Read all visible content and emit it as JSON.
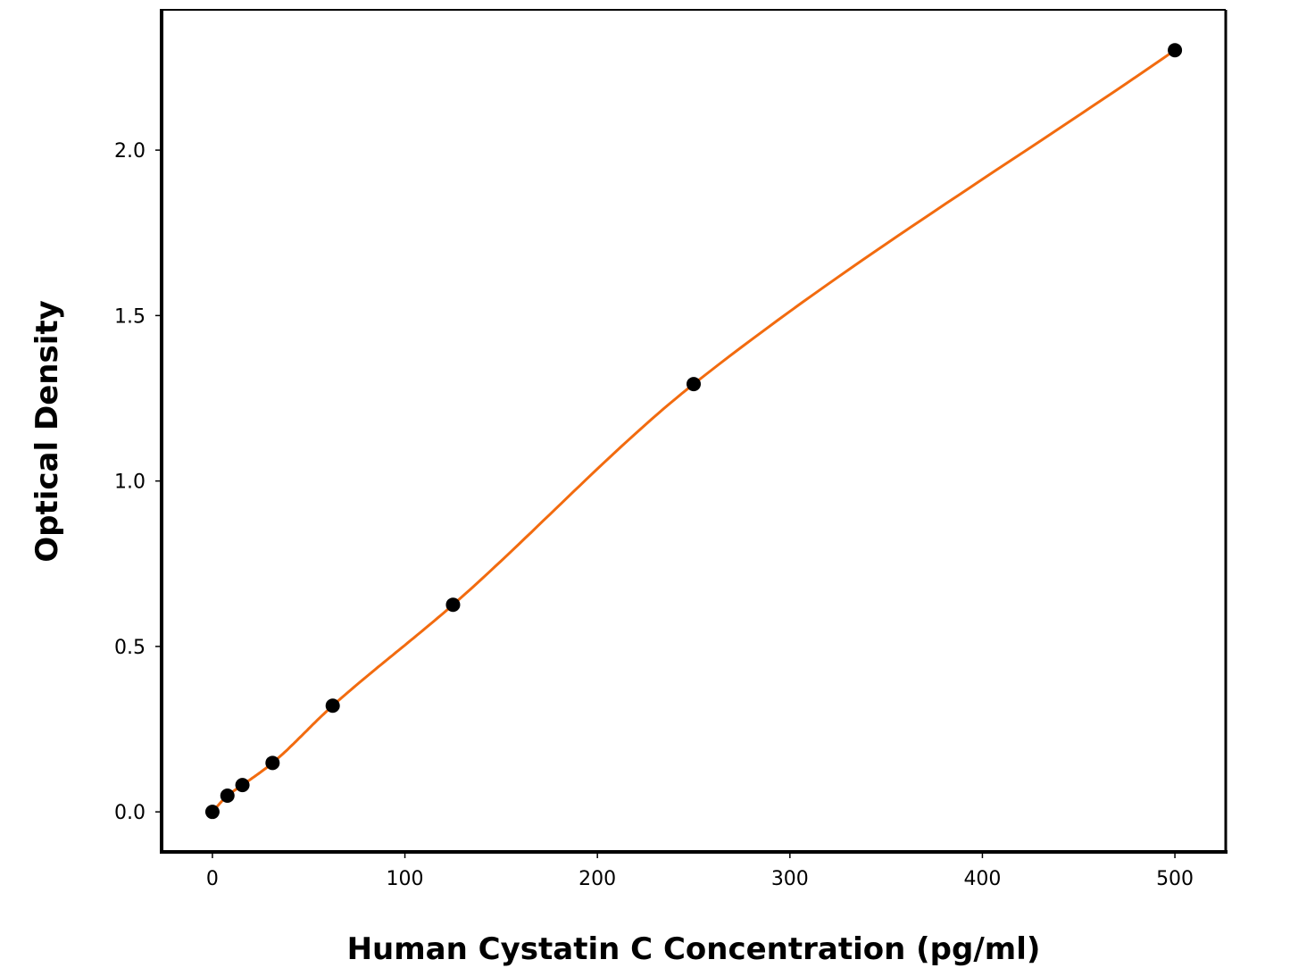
{
  "chart_data": {
    "type": "line",
    "title": "",
    "xlabel": "Human Cystatin C Concentration (pg/ml)",
    "ylabel": "Optical Density",
    "xlim": [
      -26.4,
      526.4
    ],
    "ylim": [
      -0.121,
      2.424
    ],
    "xticks": [
      0,
      100,
      200,
      300,
      400,
      500
    ],
    "xtick_labels": [
      "0",
      "100",
      "200",
      "300",
      "400",
      "500"
    ],
    "yticks": [
      0.0,
      0.5,
      1.0,
      1.5,
      2.0
    ],
    "ytick_labels": [
      "0.0",
      "0.5",
      "1.0",
      "1.5",
      "2.0"
    ],
    "grid": false,
    "series": [
      {
        "x": [
          0,
          7.8,
          15.6,
          31.25,
          62.5,
          125,
          250,
          500
        ],
        "y": [
          0.0,
          0.049,
          0.081,
          0.148,
          0.321,
          0.626,
          1.293,
          2.302
        ],
        "marker_color": "#000000",
        "line_color": "#f26b0f",
        "fit": "smooth curve"
      }
    ]
  }
}
